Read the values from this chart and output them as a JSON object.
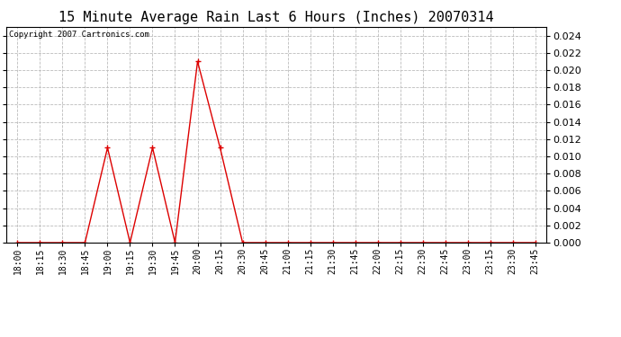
{
  "title": "15 Minute Average Rain Last 6 Hours (Inches) 20070314",
  "copyright_text": "Copyright 2007 Cartronics.com",
  "background_color": "#ffffff",
  "plot_bg_color": "#ffffff",
  "grid_color": "#bbbbbb",
  "line_color": "#dd0000",
  "marker_color": "#dd0000",
  "x_labels": [
    "18:00",
    "18:15",
    "18:30",
    "18:45",
    "19:00",
    "19:15",
    "19:30",
    "19:45",
    "20:00",
    "20:15",
    "20:30",
    "20:45",
    "21:00",
    "21:15",
    "21:30",
    "21:45",
    "22:00",
    "22:15",
    "22:30",
    "22:45",
    "23:00",
    "23:15",
    "23:30",
    "23:45"
  ],
  "y_values": [
    0.0,
    0.0,
    0.0,
    0.0,
    0.011,
    0.0,
    0.011,
    0.0,
    0.021,
    0.011,
    0.0,
    0.0,
    0.0,
    0.0,
    0.0,
    0.0,
    0.0,
    0.0,
    0.0,
    0.0,
    0.0,
    0.0,
    0.0,
    0.0
  ],
  "ylim": [
    0.0,
    0.025
  ],
  "yticks": [
    0.0,
    0.002,
    0.004,
    0.006,
    0.008,
    0.01,
    0.012,
    0.014,
    0.016,
    0.018,
    0.02,
    0.022,
    0.024
  ],
  "title_fontsize": 11,
  "copyright_fontsize": 6.5,
  "tick_fontsize": 7,
  "ylabel_fontsize": 8
}
